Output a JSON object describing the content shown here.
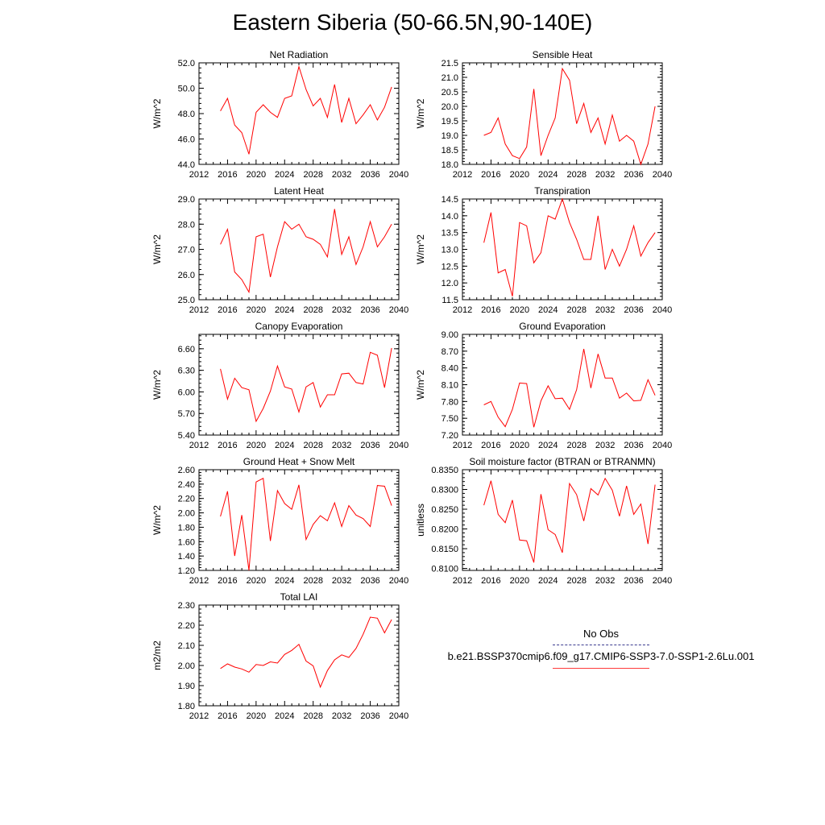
{
  "title": "Eastern Siberia (50-66.5N,90-140E)",
  "colors": {
    "model": "#ff0000",
    "obs": "#3b3b8f",
    "axis": "#000000"
  },
  "legend": {
    "obs_label": "No Obs",
    "model_label": "b.e21.BSSP370cmip6.f09_g17.CMIP6-SSP3-7.0-SSP1-2.6Lu.001"
  },
  "chart_data": [
    {
      "type": "line",
      "title": "Net Radiation",
      "ylabel": "W/m^2",
      "xlim": [
        2012,
        2040
      ],
      "ylim": [
        44.0,
        52.0
      ],
      "x_ticks": [
        "2012",
        "2016",
        "2020",
        "2024",
        "2028",
        "2032",
        "2036",
        "2040"
      ],
      "y_ticks": [
        "44.0",
        "46.0",
        "48.0",
        "50.0",
        "52.0"
      ],
      "x": [
        2015,
        2016,
        2017,
        2018,
        2019,
        2020,
        2021,
        2022,
        2023,
        2024,
        2025,
        2026,
        2027,
        2028,
        2029,
        2030,
        2031,
        2032,
        2033,
        2034,
        2035,
        2036,
        2037,
        2038,
        2039
      ],
      "series": [
        {
          "name": "b.e21.BSSP370cmip6.f09_g17.CMIP6-SSP3-7.0-SSP1-2.6Lu.001",
          "values": [
            48.2,
            49.2,
            47.1,
            46.5,
            44.8,
            48.1,
            48.7,
            48.1,
            47.7,
            49.2,
            49.4,
            51.7,
            49.9,
            48.6,
            49.2,
            47.7,
            50.3,
            47.3,
            49.2,
            47.2,
            47.9,
            48.7,
            47.5,
            48.5,
            50.1
          ]
        }
      ]
    },
    {
      "type": "line",
      "title": "Sensible Heat",
      "ylabel": "W/m^2",
      "xlim": [
        2012,
        2040
      ],
      "ylim": [
        18.0,
        21.5
      ],
      "x_ticks": [
        "2012",
        "2016",
        "2020",
        "2024",
        "2028",
        "2032",
        "2036",
        "2040"
      ],
      "y_ticks": [
        "18.0",
        "18.5",
        "19.0",
        "19.5",
        "20.0",
        "20.5",
        "21.0",
        "21.5"
      ],
      "x": [
        2015,
        2016,
        2017,
        2018,
        2019,
        2020,
        2021,
        2022,
        2023,
        2024,
        2025,
        2026,
        2027,
        2028,
        2029,
        2030,
        2031,
        2032,
        2033,
        2034,
        2035,
        2036,
        2037,
        2038,
        2039
      ],
      "series": [
        {
          "name": "b.e21.BSSP370cmip6.f09_g17.CMIP6-SSP3-7.0-SSP1-2.6Lu.001",
          "values": [
            19.0,
            19.1,
            19.6,
            18.7,
            18.3,
            18.2,
            18.6,
            20.6,
            18.3,
            19.0,
            19.6,
            21.3,
            20.9,
            19.4,
            20.1,
            19.1,
            19.6,
            18.7,
            19.7,
            18.8,
            19.0,
            18.8,
            18.0,
            18.7,
            20.0
          ]
        }
      ]
    },
    {
      "type": "line",
      "title": "Latent Heat",
      "ylabel": "W/m^2",
      "xlim": [
        2012,
        2040
      ],
      "ylim": [
        25.0,
        29.0
      ],
      "x_ticks": [
        "2012",
        "2016",
        "2020",
        "2024",
        "2028",
        "2032",
        "2036",
        "2040"
      ],
      "y_ticks": [
        "25.0",
        "26.0",
        "27.0",
        "28.0",
        "29.0"
      ],
      "x": [
        2015,
        2016,
        2017,
        2018,
        2019,
        2020,
        2021,
        2022,
        2023,
        2024,
        2025,
        2026,
        2027,
        2028,
        2029,
        2030,
        2031,
        2032,
        2033,
        2034,
        2035,
        2036,
        2037,
        2038,
        2039
      ],
      "series": [
        {
          "name": "b.e21.BSSP370cmip6.f09_g17.CMIP6-SSP3-7.0-SSP1-2.6Lu.001",
          "values": [
            27.2,
            27.8,
            26.1,
            25.8,
            25.3,
            27.5,
            27.6,
            25.9,
            27.1,
            28.1,
            27.8,
            28.0,
            27.5,
            27.4,
            27.2,
            26.7,
            28.6,
            26.8,
            27.5,
            26.4,
            27.1,
            28.1,
            27.1,
            27.5,
            28.0
          ]
        }
      ]
    },
    {
      "type": "line",
      "title": "Transpiration",
      "ylabel": "W/m^2",
      "xlim": [
        2012,
        2040
      ],
      "ylim": [
        11.5,
        14.5
      ],
      "x_ticks": [
        "2012",
        "2016",
        "2020",
        "2024",
        "2028",
        "2032",
        "2036",
        "2040"
      ],
      "y_ticks": [
        "11.5",
        "12.0",
        "12.5",
        "13.0",
        "13.5",
        "14.0",
        "14.5"
      ],
      "x": [
        2015,
        2016,
        2017,
        2018,
        2019,
        2020,
        2021,
        2022,
        2023,
        2024,
        2025,
        2026,
        2027,
        2028,
        2029,
        2030,
        2031,
        2032,
        2033,
        2034,
        2035,
        2036,
        2037,
        2038,
        2039
      ],
      "series": [
        {
          "name": "b.e21.BSSP370cmip6.f09_g17.CMIP6-SSP3-7.0-SSP1-2.6Lu.001",
          "values": [
            13.2,
            14.1,
            12.3,
            12.4,
            11.6,
            13.8,
            13.7,
            12.6,
            12.9,
            14.0,
            13.9,
            14.5,
            13.8,
            13.3,
            12.7,
            12.7,
            14.0,
            12.4,
            13.0,
            12.5,
            13.0,
            13.7,
            12.8,
            13.2,
            13.5
          ]
        }
      ]
    },
    {
      "type": "line",
      "title": "Canopy Evaporation",
      "ylabel": "W/m^2",
      "xlim": [
        2012,
        2040
      ],
      "ylim": [
        5.4,
        6.8
      ],
      "x_ticks": [
        "2012",
        "2016",
        "2020",
        "2024",
        "2028",
        "2032",
        "2036",
        "2040"
      ],
      "y_ticks": [
        "5.40",
        "5.70",
        "6.00",
        "6.30",
        "6.60"
      ],
      "x": [
        2015,
        2016,
        2017,
        2018,
        2019,
        2020,
        2021,
        2022,
        2023,
        2024,
        2025,
        2026,
        2027,
        2028,
        2029,
        2030,
        2031,
        2032,
        2033,
        2034,
        2035,
        2036,
        2037,
        2038,
        2039
      ],
      "series": [
        {
          "name": "b.e21.BSSP370cmip6.f09_g17.CMIP6-SSP3-7.0-SSP1-2.6Lu.001",
          "values": [
            6.32,
            5.9,
            6.19,
            6.06,
            6.03,
            5.59,
            5.77,
            6.01,
            6.36,
            6.07,
            6.04,
            5.72,
            6.07,
            6.13,
            5.79,
            5.96,
            5.96,
            6.25,
            6.26,
            6.13,
            6.11,
            6.55,
            6.51,
            6.06,
            6.61
          ]
        }
      ]
    },
    {
      "type": "line",
      "title": "Ground Evaporation",
      "ylabel": "W/m^2",
      "xlim": [
        2012,
        2040
      ],
      "ylim": [
        7.2,
        9.0
      ],
      "x_ticks": [
        "2012",
        "2016",
        "2020",
        "2024",
        "2028",
        "2032",
        "2036",
        "2040"
      ],
      "y_ticks": [
        "7.20",
        "7.50",
        "7.80",
        "8.10",
        "8.40",
        "8.70",
        "9.00"
      ],
      "x": [
        2015,
        2016,
        2017,
        2018,
        2019,
        2020,
        2021,
        2022,
        2023,
        2024,
        2025,
        2026,
        2027,
        2028,
        2029,
        2030,
        2031,
        2032,
        2033,
        2034,
        2035,
        2036,
        2037,
        2038,
        2039
      ],
      "series": [
        {
          "name": "b.e21.BSSP370cmip6.f09_g17.CMIP6-SSP3-7.0-SSP1-2.6Lu.001",
          "values": [
            7.74,
            7.8,
            7.52,
            7.35,
            7.66,
            8.13,
            8.12,
            7.34,
            7.81,
            8.08,
            7.85,
            7.86,
            7.66,
            8.01,
            8.74,
            8.04,
            8.65,
            8.22,
            8.22,
            7.86,
            7.95,
            7.81,
            7.82,
            8.19,
            7.91
          ]
        }
      ]
    },
    {
      "type": "line",
      "title": "Ground Heat + Snow Melt",
      "ylabel": "W/m^2",
      "xlim": [
        2012,
        2040
      ],
      "ylim": [
        1.2,
        2.6
      ],
      "x_ticks": [
        "2012",
        "2016",
        "2020",
        "2024",
        "2028",
        "2032",
        "2036",
        "2040"
      ],
      "y_ticks": [
        "1.20",
        "1.40",
        "1.60",
        "1.80",
        "2.00",
        "2.20",
        "2.40",
        "2.60"
      ],
      "x": [
        2015,
        2016,
        2017,
        2018,
        2019,
        2020,
        2021,
        2022,
        2023,
        2024,
        2025,
        2026,
        2027,
        2028,
        2029,
        2030,
        2031,
        2032,
        2033,
        2034,
        2035,
        2036,
        2037,
        2038,
        2039
      ],
      "series": [
        {
          "name": "b.e21.BSSP370cmip6.f09_g17.CMIP6-SSP3-7.0-SSP1-2.6Lu.001",
          "values": [
            1.95,
            2.3,
            1.4,
            1.97,
            1.2,
            2.43,
            2.48,
            1.61,
            2.31,
            2.13,
            2.05,
            2.39,
            1.63,
            1.84,
            1.96,
            1.89,
            2.14,
            1.81,
            2.1,
            1.97,
            1.92,
            1.81,
            2.38,
            2.37,
            2.1
          ]
        }
      ]
    },
    {
      "type": "line",
      "title": "Soil moisture factor (BTRAN or BTRANMN)",
      "ylabel": "unitless",
      "xlim": [
        2012,
        2040
      ],
      "ylim": [
        0.8095,
        0.835
      ],
      "x_ticks": [
        "2012",
        "2016",
        "2020",
        "2024",
        "2028",
        "2032",
        "2036",
        "2040"
      ],
      "y_ticks": [
        "0.8100",
        "0.8150",
        "0.8200",
        "0.8250",
        "0.8300",
        "0.8350"
      ],
      "x": [
        2015,
        2016,
        2017,
        2018,
        2019,
        2020,
        2021,
        2022,
        2023,
        2024,
        2025,
        2026,
        2027,
        2028,
        2029,
        2030,
        2031,
        2032,
        2033,
        2034,
        2035,
        2036,
        2037,
        2038,
        2039
      ],
      "series": [
        {
          "name": "b.e21.BSSP370cmip6.f09_g17.CMIP6-SSP3-7.0-SSP1-2.6Lu.001",
          "values": [
            0.826,
            0.8322,
            0.8237,
            0.8216,
            0.8273,
            0.8172,
            0.817,
            0.8115,
            0.8288,
            0.8198,
            0.8186,
            0.814,
            0.8315,
            0.8287,
            0.822,
            0.8302,
            0.8286,
            0.8328,
            0.8298,
            0.8232,
            0.8309,
            0.8237,
            0.8263,
            0.8162,
            0.8312
          ]
        }
      ]
    },
    {
      "type": "line",
      "title": "Total LAI",
      "ylabel": "m2/m2",
      "xlim": [
        2012,
        2040
      ],
      "ylim": [
        1.8,
        2.3
      ],
      "x_ticks": [
        "2012",
        "2016",
        "2020",
        "2024",
        "2028",
        "2032",
        "2036",
        "2040"
      ],
      "y_ticks": [
        "1.80",
        "1.90",
        "2.00",
        "2.10",
        "2.20",
        "2.30"
      ],
      "x": [
        2015,
        2016,
        2017,
        2018,
        2019,
        2020,
        2021,
        2022,
        2023,
        2024,
        2025,
        2026,
        2027,
        2028,
        2029,
        2030,
        2031,
        2032,
        2033,
        2034,
        2035,
        2036,
        2037,
        2038,
        2039
      ],
      "series": [
        {
          "name": "b.e21.BSSP370cmip6.f09_g17.CMIP6-SSP3-7.0-SSP1-2.6Lu.001",
          "values": [
            1.985,
            2.008,
            1.992,
            1.983,
            1.967,
            2.005,
            2.0,
            2.018,
            2.012,
            2.055,
            2.075,
            2.105,
            2.022,
            1.998,
            1.893,
            1.975,
            2.028,
            2.053,
            2.04,
            2.085,
            2.155,
            2.24,
            2.235,
            2.162,
            2.228
          ]
        }
      ]
    }
  ]
}
